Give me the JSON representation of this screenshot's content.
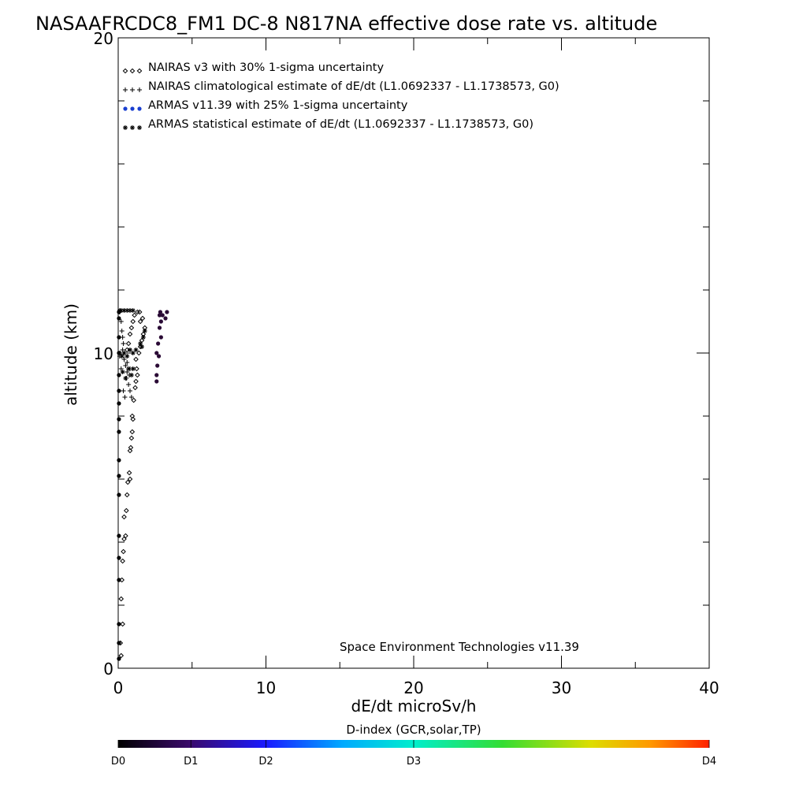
{
  "chart_data": {
    "type": "scatter",
    "title": "NASAAFRCDC8_FM1 DC-8   N817NA effective dose rate vs. altitude",
    "xlabel": "dE/dt microSv/h",
    "ylabel": "altitude (km)",
    "xlim": [
      0,
      40
    ],
    "ylim": [
      0,
      20
    ],
    "xticks": [
      0,
      10,
      20,
      30,
      40
    ],
    "yticks": [
      0,
      10,
      20
    ],
    "grid": false,
    "legend_position": "top-left",
    "legend": [
      {
        "marker": "diamond",
        "label": "NAIRAS v3 with 30% 1-sigma uncertainty",
        "color": "#000000"
      },
      {
        "marker": "plus",
        "label": "NAIRAS climatological estimate of dE/dt (L1.0692337 - L1.1738573, G0)",
        "color": "#000000"
      },
      {
        "marker": "dot",
        "label": "ARMAS v11.39 with 25% 1-sigma uncertainty",
        "color": "#1a3fd0"
      },
      {
        "marker": "asterisk",
        "label": "ARMAS statistical estimate of dE/dt (L1.0692337 - L1.1738573, G0)",
        "color": "#000000"
      }
    ],
    "annotation": "Space Environment Technologies v11.39",
    "series": [
      {
        "name": "NAIRAS v3 with 30% 1-sigma uncertainty",
        "marker": "diamond",
        "points": [
          [
            0.2,
            0.4
          ],
          [
            0.15,
            0.8
          ],
          [
            0.3,
            1.4
          ],
          [
            0.2,
            2.2
          ],
          [
            0.25,
            2.8
          ],
          [
            0.3,
            3.4
          ],
          [
            0.35,
            3.7
          ],
          [
            0.4,
            4.1
          ],
          [
            0.5,
            4.2
          ],
          [
            0.4,
            4.8
          ],
          [
            0.55,
            5.0
          ],
          [
            0.6,
            5.5
          ],
          [
            0.65,
            5.9
          ],
          [
            0.8,
            6.0
          ],
          [
            0.75,
            6.2
          ],
          [
            0.8,
            6.9
          ],
          [
            0.85,
            7.0
          ],
          [
            0.9,
            7.3
          ],
          [
            0.95,
            7.5
          ],
          [
            1.0,
            7.9
          ],
          [
            0.95,
            8.0
          ],
          [
            1.05,
            8.5
          ],
          [
            1.15,
            8.9
          ],
          [
            1.2,
            9.1
          ],
          [
            1.3,
            9.3
          ],
          [
            1.25,
            9.5
          ],
          [
            1.2,
            9.8
          ],
          [
            1.4,
            10.0
          ],
          [
            1.5,
            10.2
          ],
          [
            1.6,
            10.4
          ],
          [
            1.7,
            10.6
          ],
          [
            1.8,
            10.8
          ],
          [
            1.5,
            11.0
          ],
          [
            1.65,
            11.1
          ],
          [
            1.45,
            11.3
          ],
          [
            0.6,
            10.1
          ],
          [
            0.7,
            10.3
          ],
          [
            0.8,
            10.6
          ],
          [
            0.9,
            10.8
          ],
          [
            1.0,
            11.0
          ],
          [
            1.1,
            11.2
          ],
          [
            1.3,
            11.3
          ]
        ]
      },
      {
        "name": "NAIRAS climatological estimate of dE/dt (L1.0692337 - L1.1738573, G0)",
        "marker": "plus",
        "points": [
          [
            0.1,
            11.3
          ],
          [
            0.2,
            11.0
          ],
          [
            0.25,
            10.7
          ],
          [
            0.3,
            10.5
          ],
          [
            0.35,
            10.3
          ],
          [
            0.3,
            10.1
          ],
          [
            0.4,
            9.8
          ],
          [
            0.5,
            9.6
          ],
          [
            0.6,
            9.4
          ],
          [
            0.55,
            9.2
          ],
          [
            0.7,
            9.0
          ],
          [
            0.8,
            8.8
          ],
          [
            0.9,
            8.6
          ],
          [
            0.45,
            8.6
          ],
          [
            0.35,
            8.8
          ],
          [
            0.6,
            9.7
          ],
          [
            0.8,
            9.5
          ],
          [
            0.75,
            9.3
          ],
          [
            0.2,
            9.5
          ],
          [
            0.1,
            9.9
          ]
        ]
      },
      {
        "name": "ARMAS v11.39 with 25% 1-sigma uncertainty",
        "marker": "dot",
        "points": [
          [
            0.05,
            0.3
          ],
          [
            0.05,
            0.8
          ],
          [
            0.05,
            1.4
          ],
          [
            0.05,
            2.8
          ],
          [
            0.05,
            3.5
          ],
          [
            0.05,
            4.2
          ],
          [
            0.05,
            5.5
          ],
          [
            0.05,
            6.1
          ],
          [
            0.05,
            6.6
          ],
          [
            0.05,
            7.5
          ],
          [
            0.05,
            7.9
          ],
          [
            0.05,
            8.4
          ],
          [
            0.05,
            8.8
          ],
          [
            0.05,
            9.3
          ],
          [
            0.05,
            10.0
          ],
          [
            0.05,
            10.5
          ],
          [
            0.05,
            11.1
          ],
          [
            0.05,
            11.3
          ],
          [
            2.6,
            9.1
          ],
          [
            2.6,
            9.3
          ],
          [
            2.65,
            9.6
          ],
          [
            2.6,
            10.0
          ],
          [
            2.7,
            10.3
          ],
          [
            2.8,
            10.8
          ],
          [
            2.9,
            11.0
          ],
          [
            3.0,
            11.2
          ],
          [
            3.2,
            11.1
          ],
          [
            2.85,
            11.3
          ],
          [
            2.75,
            9.9
          ],
          [
            2.9,
            10.5
          ],
          [
            3.3,
            11.3
          ],
          [
            2.8,
            11.2
          ]
        ]
      },
      {
        "name": "ARMAS statistical estimate of dE/dt (L1.0692337 - L1.1738573, G0)",
        "marker": "asterisk",
        "points": [
          [
            0.1,
            11.35
          ],
          [
            0.2,
            11.35
          ],
          [
            0.4,
            11.35
          ],
          [
            0.6,
            11.35
          ],
          [
            0.8,
            11.35
          ],
          [
            1.0,
            11.35
          ],
          [
            0.1,
            10.0
          ],
          [
            0.25,
            9.9
          ],
          [
            0.4,
            10.0
          ],
          [
            0.6,
            9.9
          ],
          [
            0.8,
            10.1
          ],
          [
            1.0,
            10.0
          ],
          [
            1.2,
            10.1
          ],
          [
            1.5,
            10.3
          ],
          [
            1.7,
            10.5
          ],
          [
            1.8,
            10.7
          ],
          [
            1.6,
            10.2
          ],
          [
            0.9,
            9.3
          ],
          [
            0.7,
            9.5
          ],
          [
            0.5,
            9.2
          ],
          [
            1.0,
            9.5
          ],
          [
            0.3,
            9.4
          ]
        ]
      }
    ],
    "colorbar": {
      "title": "D-index (GCR,solar,TP)",
      "labels": [
        {
          "text": "D0",
          "pos": 0.0
        },
        {
          "text": "D1",
          "pos": 0.123
        },
        {
          "text": "D2",
          "pos": 0.25
        },
        {
          "text": "D3",
          "pos": 0.5
        },
        {
          "text": "D4",
          "pos": 1.0
        }
      ],
      "stops": [
        {
          "offset": 0.0,
          "color": "#000000"
        },
        {
          "offset": 0.12,
          "color": "#3a0a6a"
        },
        {
          "offset": 0.25,
          "color": "#1a1aff"
        },
        {
          "offset": 0.38,
          "color": "#00aaff"
        },
        {
          "offset": 0.5,
          "color": "#00eecc"
        },
        {
          "offset": 0.65,
          "color": "#33dd33"
        },
        {
          "offset": 0.8,
          "color": "#dddd00"
        },
        {
          "offset": 0.9,
          "color": "#ff9900"
        },
        {
          "offset": 1.0,
          "color": "#ff2200"
        }
      ]
    }
  }
}
